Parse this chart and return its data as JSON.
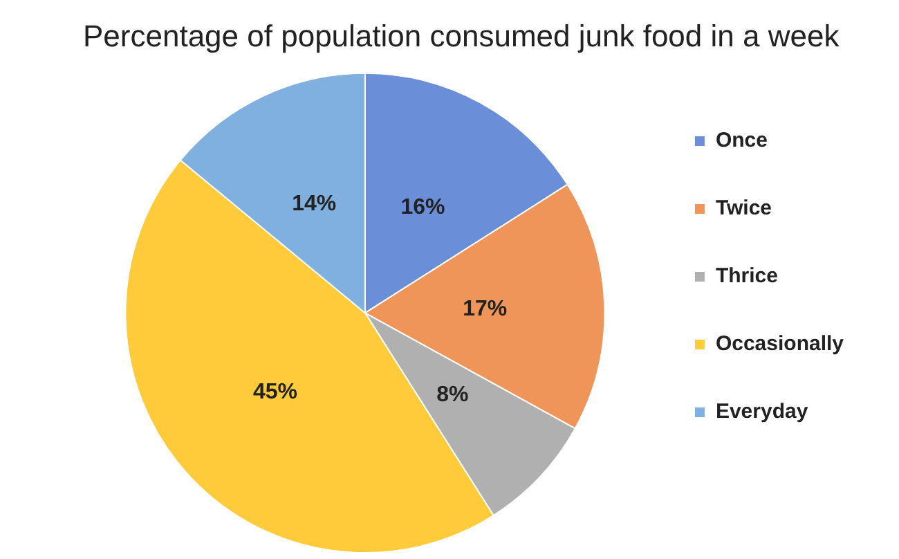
{
  "chart_data": {
    "type": "pie",
    "title": "Percentage of population consumed junk food in a week",
    "categories": [
      "Once",
      "Twice",
      "Thrice",
      "Occasionally",
      "Everyday"
    ],
    "values": [
      16,
      17,
      8,
      45,
      14
    ],
    "colors": [
      "#6a8fd8",
      "#f0955a",
      "#b0b0b0",
      "#ffcb3a",
      "#7fb0e0"
    ],
    "value_labels": [
      "16%",
      "17%",
      "8%",
      "45%",
      "14%"
    ],
    "legend": "right"
  }
}
